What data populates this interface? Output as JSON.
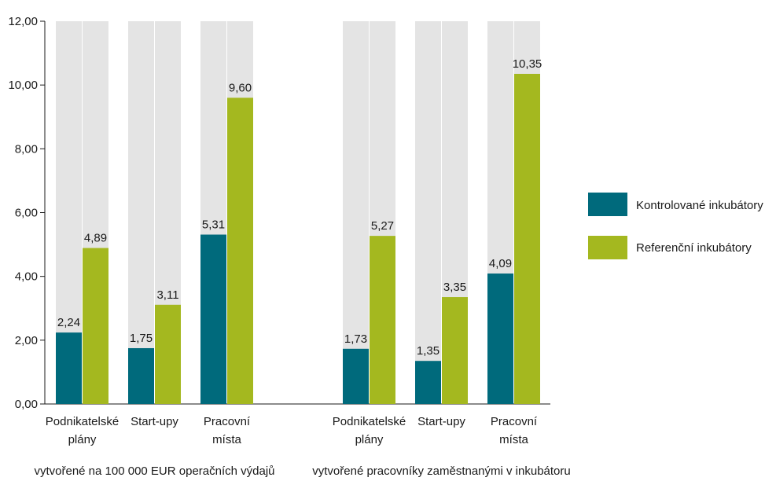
{
  "chart_data": {
    "type": "bar",
    "ylim": [
      0,
      12
    ],
    "yticks": [
      "0,00",
      "2,00",
      "4,00",
      "6,00",
      "8,00",
      "10,00",
      "12,00"
    ],
    "ytick_values": [
      0,
      2,
      4,
      6,
      8,
      10,
      12
    ],
    "grid": false,
    "legend_position": "right",
    "colors": {
      "Kontrolované inkubátory": "#006a7c",
      "Referenční inkubátory": "#a4b81f",
      "background_bar": "#e4e4e4"
    },
    "legend": [
      "Kontrolované inkubátory",
      "Referenční inkubátory"
    ],
    "groups": [
      {
        "label": "vytvořené na 100 000 EUR operačních výdajů",
        "categories": [
          {
            "label": [
              "Podnikatelské",
              "plány"
            ],
            "values": [
              2.24,
              4.89
            ],
            "value_labels": [
              "2,24",
              "4,89"
            ]
          },
          {
            "label": [
              "Start-upy"
            ],
            "values": [
              1.75,
              3.11
            ],
            "value_labels": [
              "1,75",
              "3,11"
            ]
          },
          {
            "label": [
              "Pracovní",
              "místa"
            ],
            "values": [
              5.31,
              9.6
            ],
            "value_labels": [
              "5,31",
              "9,60"
            ]
          }
        ]
      },
      {
        "label": "vytvořené pracovníky zaměstnanými v inkubátoru",
        "categories": [
          {
            "label": [
              "Podnikatelské",
              "plány"
            ],
            "values": [
              1.73,
              5.27
            ],
            "value_labels": [
              "1,73",
              "5,27"
            ]
          },
          {
            "label": [
              "Start-upy"
            ],
            "values": [
              1.35,
              3.35
            ],
            "value_labels": [
              "1,35",
              "3,35"
            ]
          },
          {
            "label": [
              "Pracovní",
              "místa"
            ],
            "values": [
              4.09,
              10.35
            ],
            "value_labels": [
              "4,09",
              "10,35"
            ]
          }
        ]
      }
    ]
  }
}
